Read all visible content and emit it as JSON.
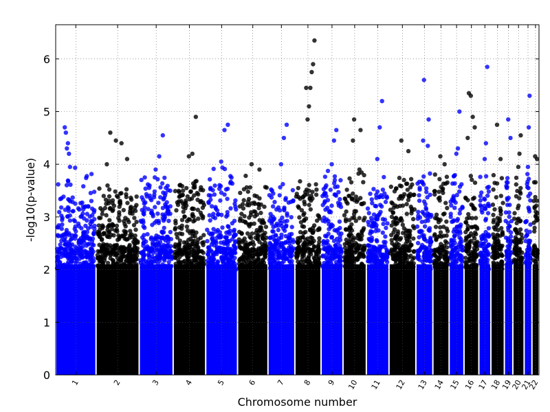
{
  "chart_data": {
    "type": "scatter",
    "title": "",
    "xlabel": "Chromosome number",
    "ylabel": "-log10(p-value)",
    "ylim": [
      0,
      6.65
    ],
    "yticks": [
      0,
      1,
      2,
      3,
      4,
      5,
      6
    ],
    "grid": true,
    "colors": [
      "#0000ff",
      "#000000"
    ],
    "chromosomes": [
      {
        "label": "1",
        "width": 57,
        "color": "#0000ff",
        "base": 3.0,
        "peaks": [
          4.7,
          4.6,
          4.3,
          4.4,
          4.2,
          3.95
        ]
      },
      {
        "label": "2",
        "width": 61,
        "color": "#000000",
        "base": 2.7,
        "peaks": [
          4.6,
          4.45,
          4.4,
          4.1,
          4.0
        ]
      },
      {
        "label": "3",
        "width": 48,
        "color": "#0000ff",
        "base": 2.9,
        "peaks": [
          4.55,
          4.15,
          3.9
        ]
      },
      {
        "label": "4",
        "width": 46,
        "color": "#000000",
        "base": 2.9,
        "peaks": [
          4.9,
          4.2,
          4.15
        ]
      },
      {
        "label": "5",
        "width": 45,
        "color": "#0000ff",
        "base": 3.0,
        "peaks": [
          4.75,
          4.65,
          4.05
        ]
      },
      {
        "label": "6",
        "width": 43,
        "color": "#000000",
        "base": 2.9,
        "peaks": [
          4.0,
          3.9
        ]
      },
      {
        "label": "7",
        "width": 38,
        "color": "#0000ff",
        "base": 2.8,
        "peaks": [
          4.75,
          4.5,
          4.0
        ]
      },
      {
        "label": "8",
        "width": 37,
        "color": "#000000",
        "base": 2.8,
        "peaks": [
          6.35,
          5.9,
          5.75,
          5.45,
          5.1,
          4.85,
          5.45
        ]
      },
      {
        "label": "9",
        "width": 31,
        "color": "#0000ff",
        "base": 3.0,
        "peaks": [
          4.65,
          4.45,
          4.0
        ]
      },
      {
        "label": "10",
        "width": 33,
        "color": "#000000",
        "base": 3.0,
        "peaks": [
          4.85,
          4.65,
          4.45,
          3.9
        ]
      },
      {
        "label": "11",
        "width": 32,
        "color": "#0000ff",
        "base": 2.9,
        "peaks": [
          5.2,
          4.7,
          4.1
        ]
      },
      {
        "label": "12",
        "width": 38,
        "color": "#000000",
        "base": 2.9,
        "peaks": [
          4.45,
          4.25
        ]
      },
      {
        "label": "13",
        "width": 24,
        "color": "#0000ff",
        "base": 3.0,
        "peaks": [
          5.6,
          4.85,
          4.45,
          4.35
        ]
      },
      {
        "label": "14",
        "width": 23,
        "color": "#000000",
        "base": 2.9,
        "peaks": [
          4.15,
          4.0
        ]
      },
      {
        "label": "15",
        "width": 21,
        "color": "#0000ff",
        "base": 3.0,
        "peaks": [
          5.0,
          4.3,
          4.2
        ]
      },
      {
        "label": "16",
        "width": 21,
        "color": "#000000",
        "base": 2.9,
        "peaks": [
          5.35,
          5.3,
          4.9,
          4.7,
          4.5
        ]
      },
      {
        "label": "17",
        "width": 17,
        "color": "#0000ff",
        "base": 3.0,
        "peaks": [
          5.85,
          4.4,
          4.1
        ]
      },
      {
        "label": "18",
        "width": 19,
        "color": "#000000",
        "base": 2.9,
        "peaks": [
          4.75,
          4.1
        ]
      },
      {
        "label": "19",
        "width": 12,
        "color": "#0000ff",
        "base": 3.0,
        "peaks": [
          4.85,
          4.5
        ]
      },
      {
        "label": "20",
        "width": 16,
        "color": "#000000",
        "base": 2.9,
        "peaks": [
          4.55,
          4.2,
          3.95
        ]
      },
      {
        "label": "21",
        "width": 11,
        "color": "#0000ff",
        "base": 3.0,
        "peaks": [
          5.3,
          4.7,
          3.95
        ]
      },
      {
        "label": "22",
        "width": 10,
        "color": "#000000",
        "base": 2.9,
        "peaks": [
          4.15,
          4.1
        ]
      }
    ]
  }
}
